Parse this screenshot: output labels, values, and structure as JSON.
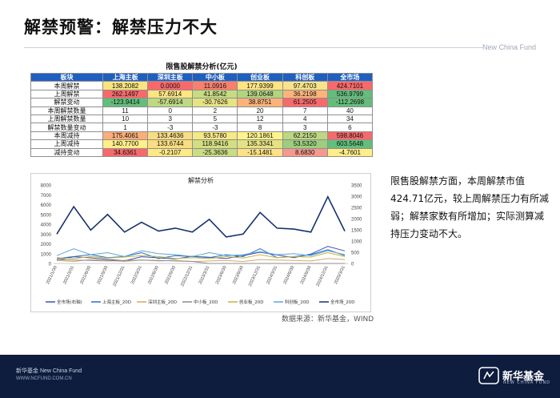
{
  "page": {
    "title": "解禁预警：解禁压力不大",
    "brand_top": "New China Fund"
  },
  "table": {
    "caption": "限售股解禁分析(亿元)",
    "headers": [
      "板块",
      "上海主板",
      "深圳主板",
      "中小板",
      "创业板",
      "科创板",
      "全市场"
    ],
    "rows": [
      {
        "label": "本周解禁",
        "values": [
          "138.2082",
          "0.0000",
          "11.0916",
          "177.9399",
          "97.4703",
          "424.7101"
        ]
      },
      {
        "label": "上周解禁",
        "values": [
          "262.1497",
          "57.6914",
          "41.8542",
          "139.0648",
          "36.2198",
          "536.9799"
        ]
      },
      {
        "label": "解禁变动",
        "values": [
          "-123.9414",
          "-57.6914",
          "-30.7626",
          "38.8751",
          "61.2505",
          "-112.2698"
        ]
      },
      {
        "label": "本周解禁数量",
        "values": [
          "11",
          "0",
          "2",
          "20",
          "7",
          "40"
        ]
      },
      {
        "label": "上周解禁数量",
        "values": [
          "10",
          "3",
          "5",
          "12",
          "4",
          "34"
        ]
      },
      {
        "label": "解禁数量变动",
        "values": [
          "1",
          "-3",
          "-3",
          "8",
          "3",
          "6"
        ]
      },
      {
        "label": "本周减持",
        "values": [
          "175.4061",
          "133.4636",
          "93.5780",
          "120.1861",
          "62.2150",
          "598.8046"
        ]
      },
      {
        "label": "上周减持",
        "values": [
          "140.7700",
          "133.6744",
          "118.9416",
          "135.3341",
          "53.5320",
          "603.5648"
        ]
      },
      {
        "label": "减持变动",
        "values": [
          "34.6361",
          "-0.2107",
          "-25.3636",
          "-15.1481",
          "8.6830",
          "-4.7601"
        ]
      }
    ],
    "cell_colors": [
      [
        "#f9e57f",
        "#f8696b",
        "#f9806d",
        "#fee582",
        "#f9e38a",
        "#f8696b"
      ],
      [
        "#f8696b",
        "#fee582",
        "#c7db80",
        "#b2d47f",
        "#fcb479",
        "#63be7b"
      ],
      [
        "#63be7b",
        "#bfd981",
        "#e6e383",
        "#fcb278",
        "#f8696b",
        "#63be7b"
      ],
      [
        "#ffffff",
        "#ffffff",
        "#ffffff",
        "#ffffff",
        "#ffffff",
        "#ffffff"
      ],
      [
        "#ffffff",
        "#ffffff",
        "#ffffff",
        "#ffffff",
        "#ffffff",
        "#ffffff"
      ],
      [
        "#ffffff",
        "#ffffff",
        "#ffffff",
        "#ffffff",
        "#ffffff",
        "#ffffff"
      ],
      [
        "#fbae78",
        "#f9dd82",
        "#f6e884",
        "#fff38a",
        "#bcd880",
        "#f8696b"
      ],
      [
        "#ffee8a",
        "#f9dd82",
        "#d2de82",
        "#e4e283",
        "#9dcd7f",
        "#63be7b"
      ],
      [
        "#f8696b",
        "#ffe984",
        "#cbdc81",
        "#fde184",
        "#f6988c",
        "#ffed88"
      ]
    ]
  },
  "chart_data": {
    "type": "line",
    "title": "解禁分析",
    "x": [
      "2021/1/30",
      "2021/3/31",
      "2021/6/30",
      "2021/9/30",
      "2021/12/31",
      "2022/3/31",
      "2022/6/30",
      "2022/9/30",
      "2022/12/31",
      "2023/3/31",
      "2023/6/30",
      "2023/9/30",
      "2023/12/31",
      "2024/3/31",
      "2024/6/30",
      "2024/9/30",
      "2024/12/31",
      "2025/3/31"
    ],
    "y_left": [
      0,
      1000,
      2000,
      3000,
      4000,
      5000,
      6000,
      7000,
      8000
    ],
    "y_right": [
      0,
      500,
      1000,
      1500,
      2000,
      2500,
      3000,
      3500
    ],
    "ylim_left": [
      0,
      8000
    ],
    "ylim_right": [
      0,
      3500
    ],
    "series": [
      {
        "name": "全市场(右轴)",
        "color": "#3f4fb8",
        "axis": "right",
        "width": 1.0,
        "values": [
          150,
          300,
          250,
          180,
          120,
          300,
          250,
          200,
          320,
          280,
          220,
          350,
          500,
          380,
          260,
          420,
          760,
          560
        ]
      },
      {
        "name": "上海主板_20D",
        "color": "#2c6fbf",
        "axis": "left",
        "width": 1.0,
        "values": [
          500,
          700,
          900,
          600,
          700,
          1100,
          500,
          800,
          700,
          600,
          900,
          700,
          1500,
          600,
          700,
          900,
          1400,
          800
        ]
      },
      {
        "name": "深圳主板_20D",
        "color": "#d4a86a",
        "axis": "left",
        "width": 1.0,
        "values": [
          300,
          200,
          400,
          300,
          200,
          350,
          250,
          300,
          200,
          250,
          300,
          200,
          400,
          350,
          300,
          250,
          500,
          400
        ]
      },
      {
        "name": "中小板_20D",
        "color": "#8c8c8c",
        "axis": "left",
        "width": 1.0,
        "values": [
          400,
          350,
          300,
          250,
          300,
          350,
          300,
          250,
          200,
          0,
          0,
          0,
          0,
          0,
          0,
          0,
          0,
          0
        ]
      },
      {
        "name": "创业板_20D",
        "color": "#c9b33d",
        "axis": "left",
        "width": 1.0,
        "values": [
          600,
          500,
          700,
          550,
          650,
          800,
          700,
          500,
          600,
          500,
          700,
          550,
          900,
          600,
          700,
          650,
          1100,
          700
        ]
      },
      {
        "name": "科创板_20D",
        "color": "#5aa6d8",
        "axis": "left",
        "width": 1.0,
        "values": [
          800,
          1500,
          900,
          1100,
          700,
          1300,
          1000,
          900,
          700,
          1100,
          800,
          900,
          1200,
          900,
          1000,
          800,
          1300,
          900
        ]
      },
      {
        "name": "全市场_20D",
        "color": "#16306e",
        "axis": "left",
        "width": 1.6,
        "values": [
          3000,
          5800,
          3400,
          5000,
          3200,
          4200,
          3300,
          3600,
          3200,
          4500,
          2700,
          3000,
          5200,
          3600,
          3500,
          3200,
          6800,
          3300
        ]
      }
    ],
    "legend_position": "bottom",
    "grid": false
  },
  "source": "数据来源：新华基金，WIND",
  "side_text": "限售股解禁方面，本周解禁市值424.71亿元，较上周解禁压力有所减弱；解禁家数有所增加；实际测算减持压力变动不大。",
  "footer": {
    "line1": "新华基金 New China Fund",
    "line2": "WWW.NCFUND.COM.CN",
    "logo_text": "新华基金",
    "logo_sub": "NEW CHINA FUND",
    "bg_color": "#0e1c3d"
  }
}
